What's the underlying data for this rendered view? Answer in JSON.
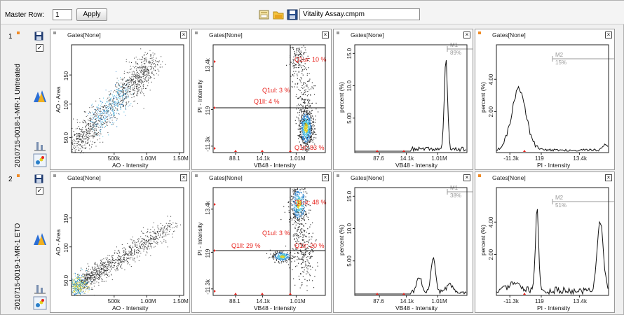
{
  "toolbar": {
    "master_row_label": "Master Row:",
    "master_row_value": "1",
    "apply_label": "Apply",
    "file_name": "Vitality Assay.cmpm",
    "icons": [
      "layout-icon",
      "folder-icon",
      "save-icon"
    ]
  },
  "rows": [
    {
      "number": "1",
      "sample": "2010715-0018-1-MR-1 Untreated",
      "checked": "✓",
      "plots": {
        "scatter_ao": {
          "title": "Gates[None]",
          "xlabel": "AO - Intensity",
          "ylabel": "AO - Area",
          "x_ticks": [
            "500k",
            "1.00M",
            "1.50M"
          ],
          "y_ticks": [
            "150",
            "100",
            "50.0"
          ]
        },
        "scatter_pi": {
          "title": "Gates[None]",
          "xlabel": "VB48 - Intensity",
          "ylabel": "PI - Intensity",
          "x_ticks": [
            "88.1",
            "14.1k",
            "1.01M"
          ],
          "y_ticks": [
            "13.4k",
            "119",
            "-11.3k"
          ],
          "quadrants": {
            "q1ur": "Q1ur: 10 %",
            "q1ul": "Q1ul: 3 %",
            "q1ll": "Q1ll: 4 %",
            "q1lr": "Q1lr: 83 %"
          }
        },
        "hist_vb48": {
          "title": "Gates[None]",
          "xlabel": "VB48 - Intensity",
          "ylabel": "percent (%)",
          "x_ticks": [
            "87.6",
            "14.1k",
            "1.01M"
          ],
          "y_ticks": [
            "15.0",
            "10.0",
            "5.00"
          ],
          "gate_name": "M1",
          "gate_value": "89%"
        },
        "hist_pi": {
          "title": "Gates[None]",
          "xlabel": "PI - Intensity",
          "ylabel": "percent (%)",
          "x_ticks": [
            "-11.3k",
            "119",
            "13.4k"
          ],
          "y_ticks": [
            "4.00",
            "2.00"
          ],
          "gate_name": "M2",
          "gate_value": "15%"
        }
      }
    },
    {
      "number": "2",
      "sample": "2010715-0019-1-MR-1 ETO",
      "checked": "✓",
      "plots": {
        "scatter_ao": {
          "title": "Gates[None]",
          "xlabel": "AO - Intensity",
          "ylabel": "AO - Area",
          "x_ticks": [
            "500k",
            "1.00M",
            "1.50M"
          ],
          "y_ticks": [
            "150",
            "100",
            "50.0"
          ]
        },
        "scatter_pi": {
          "title": "Gates[None]",
          "xlabel": "VB48 - Intensity",
          "ylabel": "PI - Intensity",
          "x_ticks": [
            "88.1",
            "14.1k",
            "1.01M"
          ],
          "y_ticks": [
            "13.4k",
            "119",
            "-11.3k"
          ],
          "quadrants": {
            "q1ur": "Q1ur: 48 %",
            "q1ul": "Q1ul: 3 %",
            "q1ll": "Q1ll: 29 %",
            "q1lr": "Q1lr: 20 %"
          }
        },
        "hist_vb48": {
          "title": "Gates[None]",
          "xlabel": "VB48 - Intensity",
          "ylabel": "percent (%)",
          "x_ticks": [
            "87.6",
            "14.1k",
            "1.01M"
          ],
          "y_ticks": [
            "15.0",
            "10.0",
            "5.00"
          ],
          "gate_name": "M1",
          "gate_value": "38%"
        },
        "hist_pi": {
          "title": "Gates[None]",
          "xlabel": "PI - Intensity",
          "ylabel": "percent (%)",
          "x_ticks": [
            "-11.3k",
            "119",
            "13.4k"
          ],
          "y_ticks": [
            "4.00",
            "2.00"
          ],
          "gate_name": "M2",
          "gate_value": "51%"
        }
      }
    }
  ],
  "colors": {
    "quadrant_label": "#e8231d",
    "close_flag": "#f08a24",
    "density_low": "#303030",
    "density_high": "#20b0e0"
  }
}
